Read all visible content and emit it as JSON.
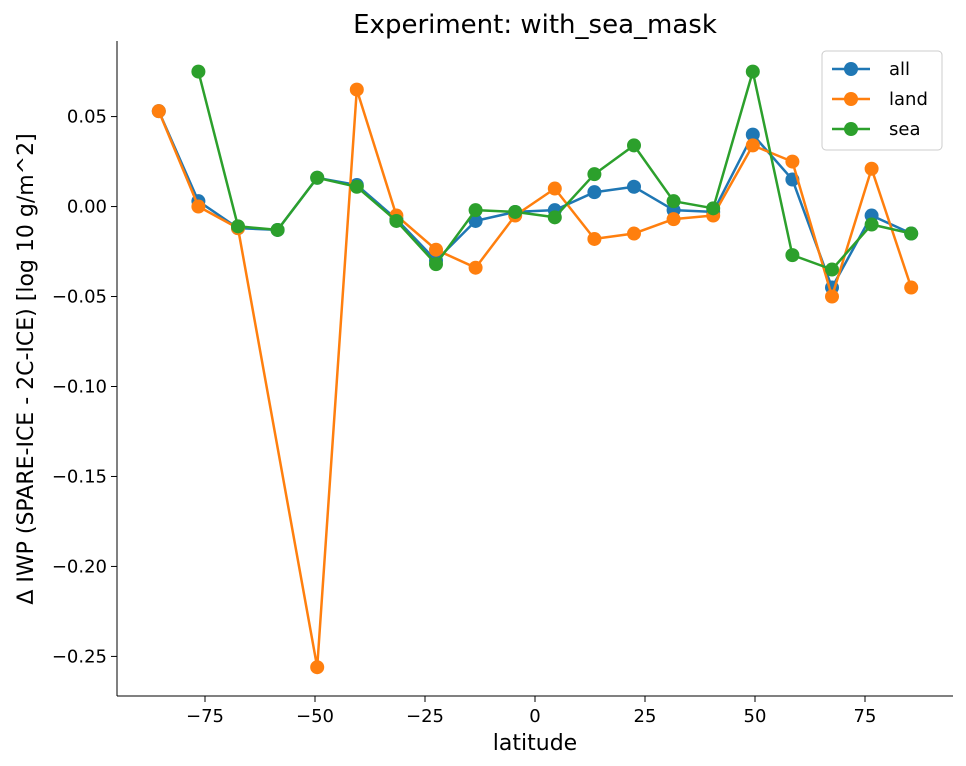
{
  "chart_data": {
    "type": "line",
    "title": "Experiment: with_sea_mask",
    "xlabel": "latitude",
    "ylabel": "Δ IWP (SPARE-ICE - 2C-ICE) [log 10 g/m^2]",
    "xlim": [
      -95,
      95
    ],
    "ylim": [
      -0.272,
      0.092
    ],
    "xticks": [
      -75,
      -50,
      -25,
      0,
      25,
      50,
      75
    ],
    "xtick_labels": [
      "−75",
      "−50",
      "−25",
      "0",
      "25",
      "50",
      "75"
    ],
    "yticks": [
      -0.25,
      -0.2,
      -0.15,
      -0.1,
      -0.05,
      0.0,
      0.05
    ],
    "ytick_labels": [
      "−0.25",
      "−0.20",
      "−0.15",
      "−0.10",
      "−0.05",
      "0.00",
      "0.05"
    ],
    "grid": false,
    "legend_position": "top-right",
    "series": [
      {
        "name": "all",
        "color": "#1f77b4",
        "x": [
          -85.5,
          -76.5,
          -67.5,
          -58.5,
          -49.5,
          -40.5,
          -31.5,
          -22.5,
          -13.5,
          -4.5,
          4.5,
          13.5,
          22.5,
          31.5,
          40.5,
          49.5,
          58.5,
          67.5,
          76.5,
          85.5
        ],
        "y": [
          0.053,
          0.003,
          -0.012,
          -0.013,
          0.016,
          0.012,
          -0.007,
          -0.03,
          -0.008,
          -0.003,
          -0.002,
          0.008,
          0.011,
          -0.002,
          -0.003,
          0.04,
          0.015,
          -0.045,
          -0.005,
          -0.015
        ]
      },
      {
        "name": "land",
        "color": "#ff7f0e",
        "x": [
          -85.5,
          -76.5,
          -67.5,
          -49.5,
          -40.5,
          -31.5,
          -22.5,
          -13.5,
          -4.5,
          4.5,
          13.5,
          22.5,
          31.5,
          40.5,
          49.5,
          58.5,
          67.5,
          76.5,
          85.5
        ],
        "y": [
          0.053,
          0.0,
          -0.012,
          -0.256,
          0.065,
          -0.005,
          -0.024,
          -0.034,
          -0.005,
          0.01,
          -0.018,
          -0.015,
          -0.007,
          -0.005,
          0.034,
          0.025,
          -0.05,
          0.021,
          -0.045
        ]
      },
      {
        "name": "sea",
        "color": "#2ca02c",
        "x": [
          -76.5,
          -67.5,
          -58.5,
          -49.5,
          -40.5,
          -31.5,
          -22.5,
          -13.5,
          -4.5,
          4.5,
          13.5,
          22.5,
          31.5,
          40.5,
          49.5,
          58.5,
          67.5,
          76.5,
          85.5
        ],
        "y": [
          0.075,
          -0.011,
          -0.013,
          0.016,
          0.011,
          -0.008,
          -0.032,
          -0.002,
          -0.003,
          -0.006,
          0.018,
          0.034,
          0.003,
          -0.001,
          0.075,
          -0.027,
          -0.035,
          -0.01,
          -0.015
        ]
      }
    ]
  }
}
